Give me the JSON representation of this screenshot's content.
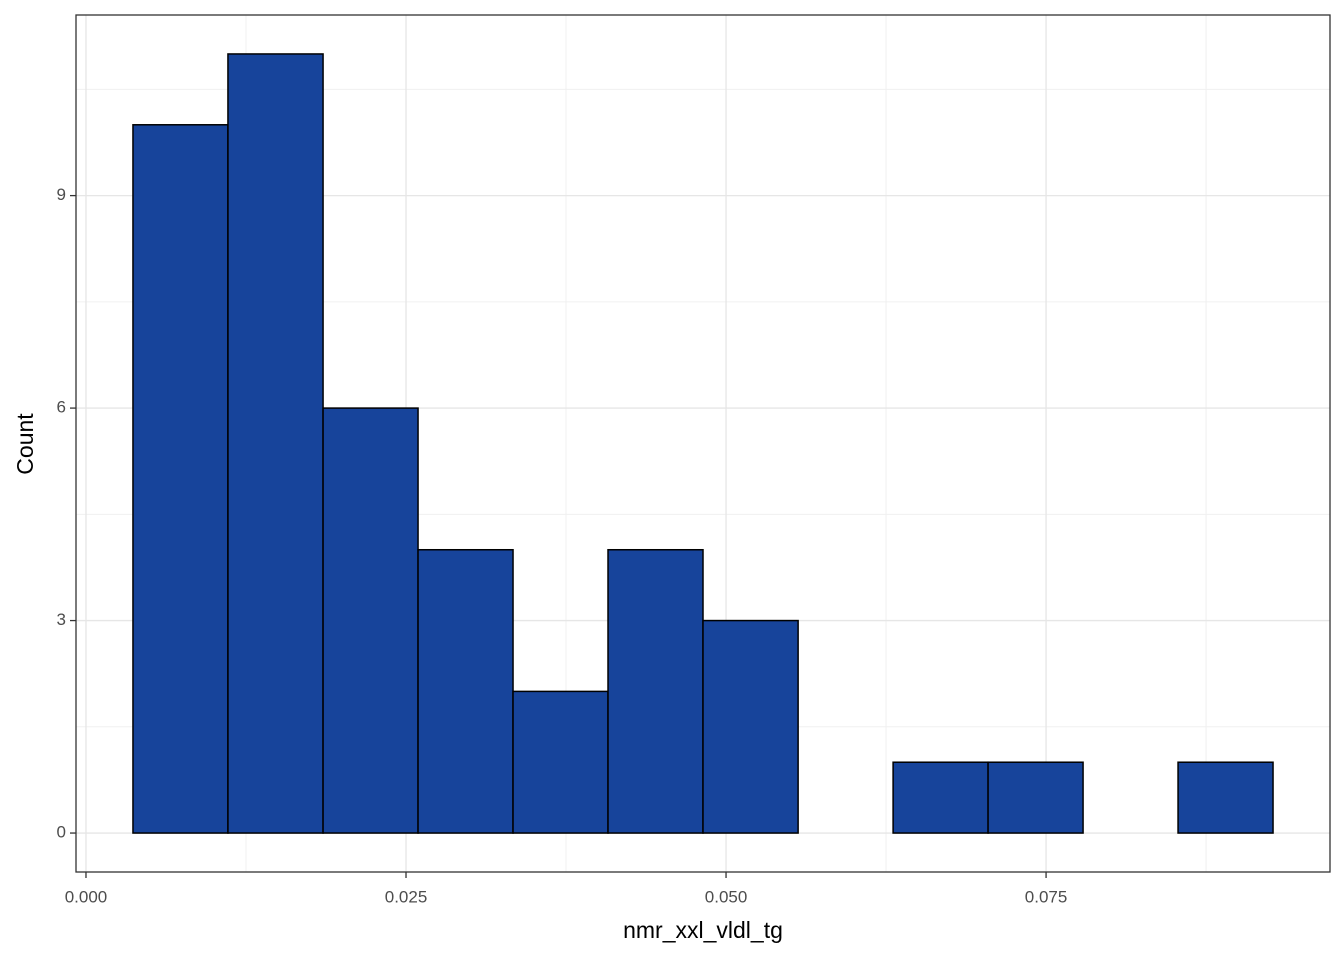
{
  "chart_data": {
    "type": "histogram",
    "x_label": "nmr_xxl_vldl_tg",
    "y_label": "Count",
    "bins": [
      0.00367,
      0.01109,
      0.01852,
      0.02594,
      0.03336,
      0.04078,
      0.0482,
      0.05563,
      0.06305,
      0.07047,
      0.07789,
      0.08531,
      0.09273
    ],
    "values": [
      10,
      11,
      6,
      4,
      2,
      4,
      3,
      0,
      1,
      1,
      0,
      1
    ],
    "color": "#17449b",
    "xlim": [
      -0.00078,
      0.09718
    ],
    "ylim": [
      -0.55,
      11.55
    ],
    "xticks": [
      {
        "value": 0,
        "label": "0.000"
      },
      {
        "value": 0.025,
        "label": "0.025"
      },
      {
        "value": 0.05,
        "label": "0.050"
      },
      {
        "value": 0.075,
        "label": "0.075"
      }
    ],
    "yticks": [
      0,
      3,
      6,
      9
    ],
    "grid": true
  }
}
